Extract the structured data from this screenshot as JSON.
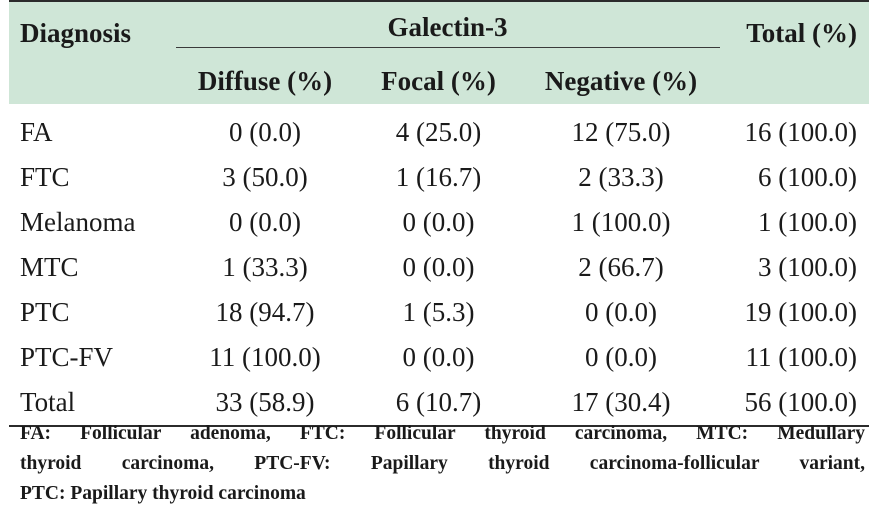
{
  "header": {
    "diagnosis": "Diagnosis",
    "group": "Galectin-3",
    "total": "Total (%)",
    "diffuse": "Diffuse (%)",
    "focal": "Focal (%)",
    "negative": "Negative (%)"
  },
  "rows": [
    {
      "name": "FA",
      "diffuse": "0 (0.0)",
      "focal": "4 (25.0)",
      "negative": "12 (75.0)",
      "total": "16 (100.0)"
    },
    {
      "name": "FTC",
      "diffuse": "3 (50.0)",
      "focal": "1 (16.7)",
      "negative": "2 (33.3)",
      "total": "6 (100.0)"
    },
    {
      "name": "Melanoma",
      "diffuse": "0 (0.0)",
      "focal": "0 (0.0)",
      "negative": "1 (100.0)",
      "total": "1 (100.0)"
    },
    {
      "name": "MTC",
      "diffuse": "1 (33.3)",
      "focal": "0 (0.0)",
      "negative": "2 (66.7)",
      "total": "3 (100.0)"
    },
    {
      "name": "PTC",
      "diffuse": "18 (94.7)",
      "focal": "1 (5.3)",
      "negative": "0 (0.0)",
      "total": "19 (100.0)"
    },
    {
      "name": "PTC-FV",
      "diffuse": "11 (100.0)",
      "focal": "0 (0.0)",
      "negative": "0 (0.0)",
      "total": "11 (100.0)"
    },
    {
      "name": "Total",
      "diffuse": "33 (58.9)",
      "focal": "6 (10.7)",
      "negative": "17 (30.4)",
      "total": "56 (100.0)"
    }
  ],
  "footnote": {
    "line1": "FA: Follicular adenoma, FTC: Follicular thyroid carcinoma, MTC: Medullary",
    "line2": "thyroid carcinoma, PTC-FV: Papillary thyroid carcinoma-follicular variant,",
    "line3": "PTC: Papillary thyroid carcinoma"
  },
  "colors": {
    "header_bg": "#cfe6d7",
    "rule": "#2b2b2b",
    "text": "#1a1a1a"
  }
}
